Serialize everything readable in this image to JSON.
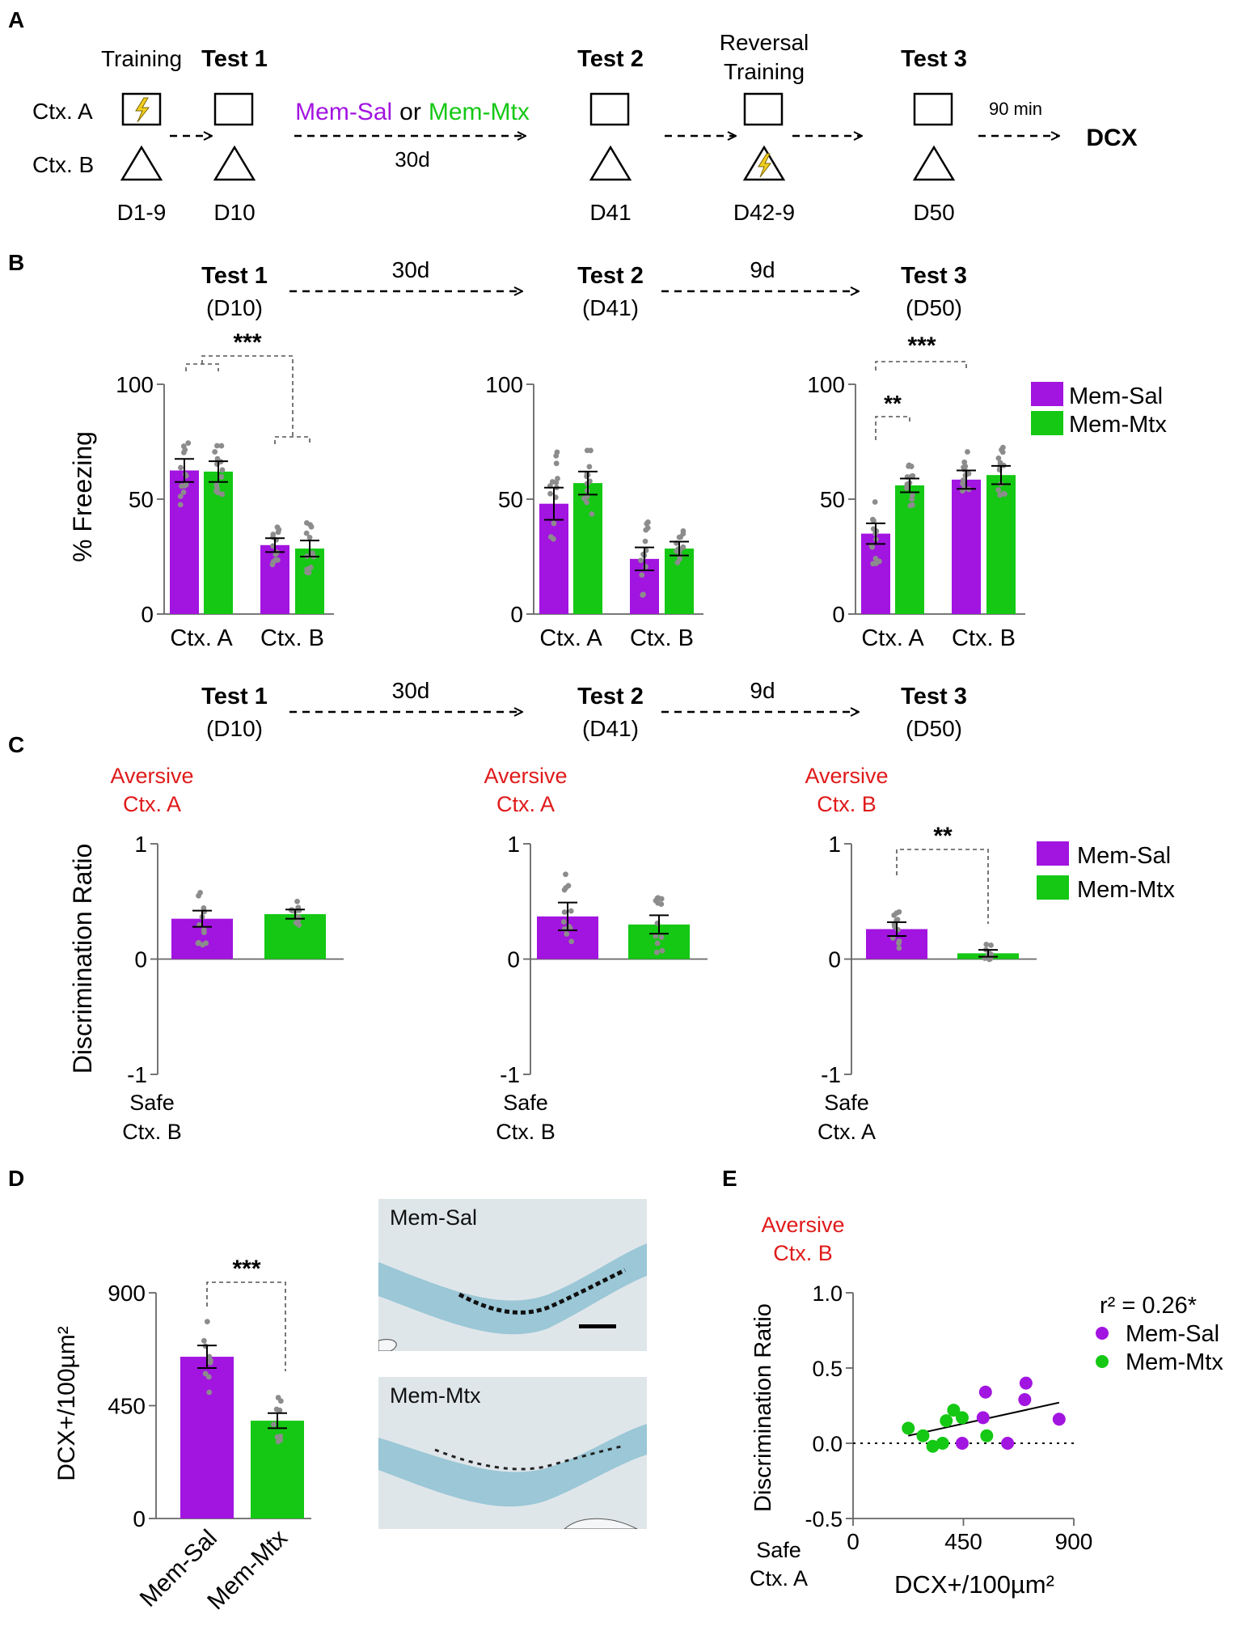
{
  "colors": {
    "sal": "#a214e0",
    "mtx": "#14c814",
    "dot": "#8c8c8c",
    "red": "#e01a1a"
  },
  "panel_letters": {
    "A": "A",
    "B": "B",
    "C": "C",
    "D": "D",
    "E": "E"
  },
  "schematic": {
    "ctx_a": "Ctx. A",
    "ctx_b": "Ctx. B",
    "training": "Training",
    "test1": "Test 1",
    "test2": "Test 2",
    "test3": "Test 3",
    "reversal_line1": "Reversal",
    "reversal_line2": "Training",
    "drug_sal": "Mem-Sal",
    "drug_or": "or",
    "drug_mtx": "Mem-Mtx",
    "interval_30d": "30d",
    "interval_90min": "90 min",
    "endpoint": "DCX",
    "day1": "D1-9",
    "day2": "D10",
    "day3": "D41",
    "day4": "D42-9",
    "day5": "D50"
  },
  "timeline": {
    "t1": "Test 1",
    "t1d": "(D10)",
    "t2": "Test 2",
    "t2d": "(D41)",
    "t3": "Test 3",
    "t3d": "(D50)",
    "i1": "30d",
    "i2": "9d"
  },
  "legend": {
    "sal": "Mem-Sal",
    "mtx": "Mem-Mtx"
  },
  "panel_c_labels": {
    "aversive": "Aversive",
    "safe": "Safe",
    "ctx_a": "Ctx. A",
    "ctx_b": "Ctx. B"
  },
  "panel_d": {
    "image_label_sal": "Mem-Sal",
    "image_label_mtx": "Mem-Mtx"
  },
  "chart_data": [
    {
      "id": "B1",
      "type": "bar",
      "title": "Test 1 (D10)",
      "ylabel": "% Freezing",
      "ylim": [
        0,
        100
      ],
      "yticks": [
        0,
        50,
        100
      ],
      "categories": [
        "Ctx. A",
        "Ctx. B"
      ],
      "series": [
        {
          "name": "Mem-Sal",
          "values": [
            62.5,
            30
          ],
          "sem": [
            5,
            3
          ]
        },
        {
          "name": "Mem-Mtx",
          "values": [
            62,
            28.5
          ],
          "sem": [
            4.5,
            3.5
          ]
        }
      ],
      "significance": [
        {
          "label": "***",
          "between": "Ctx. A vs Ctx. B"
        }
      ]
    },
    {
      "id": "B2",
      "type": "bar",
      "title": "Test 2 (D41)",
      "ylabel": "% Freezing",
      "ylim": [
        0,
        100
      ],
      "yticks": [
        0,
        50,
        100
      ],
      "categories": [
        "Ctx. A",
        "Ctx. B"
      ],
      "series": [
        {
          "name": "Mem-Sal",
          "values": [
            48,
            24
          ],
          "sem": [
            7,
            5
          ]
        },
        {
          "name": "Mem-Mtx",
          "values": [
            57,
            28.5
          ],
          "sem": [
            5,
            3
          ]
        }
      ],
      "significance": []
    },
    {
      "id": "B3",
      "type": "bar",
      "title": "Test 3 (D50)",
      "ylabel": "% Freezing",
      "ylim": [
        0,
        100
      ],
      "yticks": [
        0,
        50,
        100
      ],
      "categories": [
        "Ctx. A",
        "Ctx. B"
      ],
      "series": [
        {
          "name": "Mem-Sal",
          "values": [
            35,
            58.5
          ],
          "sem": [
            4.5,
            4
          ]
        },
        {
          "name": "Mem-Mtx",
          "values": [
            56,
            60.5
          ],
          "sem": [
            3,
            4
          ]
        }
      ],
      "significance": [
        {
          "label": "**",
          "between": "Ctx. A Mem-Sal vs Mem-Mtx"
        },
        {
          "label": "***",
          "between": "Ctx. A Mem-Sal vs Ctx. B Mem-Sal"
        }
      ]
    },
    {
      "id": "C1",
      "type": "bar",
      "title": "Test 1 (D10)",
      "ylabel": "Discrimination Ratio",
      "ylim": [
        -1,
        1
      ],
      "yticks": [
        -1,
        0,
        1
      ],
      "top_label": [
        "Aversive",
        "Ctx. A"
      ],
      "bottom_label": [
        "Safe",
        "Ctx. B"
      ],
      "categories": [
        "Mem-Sal",
        "Mem-Mtx"
      ],
      "values": [
        0.35,
        0.39
      ],
      "sem": [
        0.07,
        0.04
      ],
      "significance": []
    },
    {
      "id": "C2",
      "type": "bar",
      "title": "Test 2 (D41)",
      "ylabel": "Discrimination Ratio",
      "ylim": [
        -1,
        1
      ],
      "yticks": [
        -1,
        0,
        1
      ],
      "top_label": [
        "Aversive",
        "Ctx. A"
      ],
      "bottom_label": [
        "Safe",
        "Ctx. B"
      ],
      "categories": [
        "Mem-Sal",
        "Mem-Mtx"
      ],
      "values": [
        0.37,
        0.3
      ],
      "sem": [
        0.12,
        0.08
      ],
      "significance": []
    },
    {
      "id": "C3",
      "type": "bar",
      "title": "Test 3 (D50)",
      "ylabel": "Discrimination Ratio",
      "ylim": [
        -1,
        1
      ],
      "yticks": [
        -1,
        0,
        1
      ],
      "top_label": [
        "Aversive",
        "Ctx. B"
      ],
      "bottom_label": [
        "Safe",
        "Ctx. A"
      ],
      "categories": [
        "Mem-Sal",
        "Mem-Mtx"
      ],
      "values": [
        0.26,
        0.05
      ],
      "sem": [
        0.06,
        0.03
      ],
      "significance": [
        {
          "label": "**",
          "between": "Mem-Sal vs Mem-Mtx"
        }
      ]
    },
    {
      "id": "D",
      "type": "bar",
      "ylabel": "DCX+/100µm²",
      "ylim": [
        0,
        900
      ],
      "yticks": [
        0,
        450,
        900
      ],
      "categories": [
        "Mem-Sal",
        "Mem-Mtx"
      ],
      "values": [
        645,
        390
      ],
      "sem": [
        45,
        30
      ],
      "significance": [
        {
          "label": "***",
          "between": "Mem-Sal vs Mem-Mtx"
        }
      ]
    },
    {
      "id": "E",
      "type": "scatter",
      "title": "Aversive Ctx. B",
      "xlabel": "DCX+/100µm²",
      "ylabel": "Discrimination Ratio",
      "xlim": [
        0,
        900
      ],
      "ylim": [
        -0.5,
        1.0
      ],
      "xticks": [
        0,
        450,
        900
      ],
      "yticks": [
        "-0.5",
        "0.0",
        "0.5",
        "1.0"
      ],
      "bottom_label": [
        "Safe",
        "Ctx. A"
      ],
      "annotation": "r² = 0.26*",
      "series": [
        {
          "name": "Mem-Sal",
          "points": [
            [
              445,
              0.0
            ],
            [
              530,
              0.17
            ],
            [
              540,
              0.34
            ],
            [
              630,
              0.0
            ],
            [
              700,
              0.29
            ],
            [
              705,
              0.4
            ],
            [
              840,
              0.16
            ]
          ]
        },
        {
          "name": "Mem-Mtx",
          "points": [
            [
              225,
              0.1
            ],
            [
              285,
              0.05
            ],
            [
              325,
              -0.02
            ],
            [
              365,
              0.0
            ],
            [
              380,
              0.15
            ],
            [
              410,
              0.22
            ],
            [
              445,
              0.17
            ],
            [
              545,
              0.05
            ]
          ]
        }
      ],
      "fit_line": {
        "x": [
          225,
          840
        ],
        "y": [
          0.05,
          0.27
        ]
      }
    }
  ]
}
